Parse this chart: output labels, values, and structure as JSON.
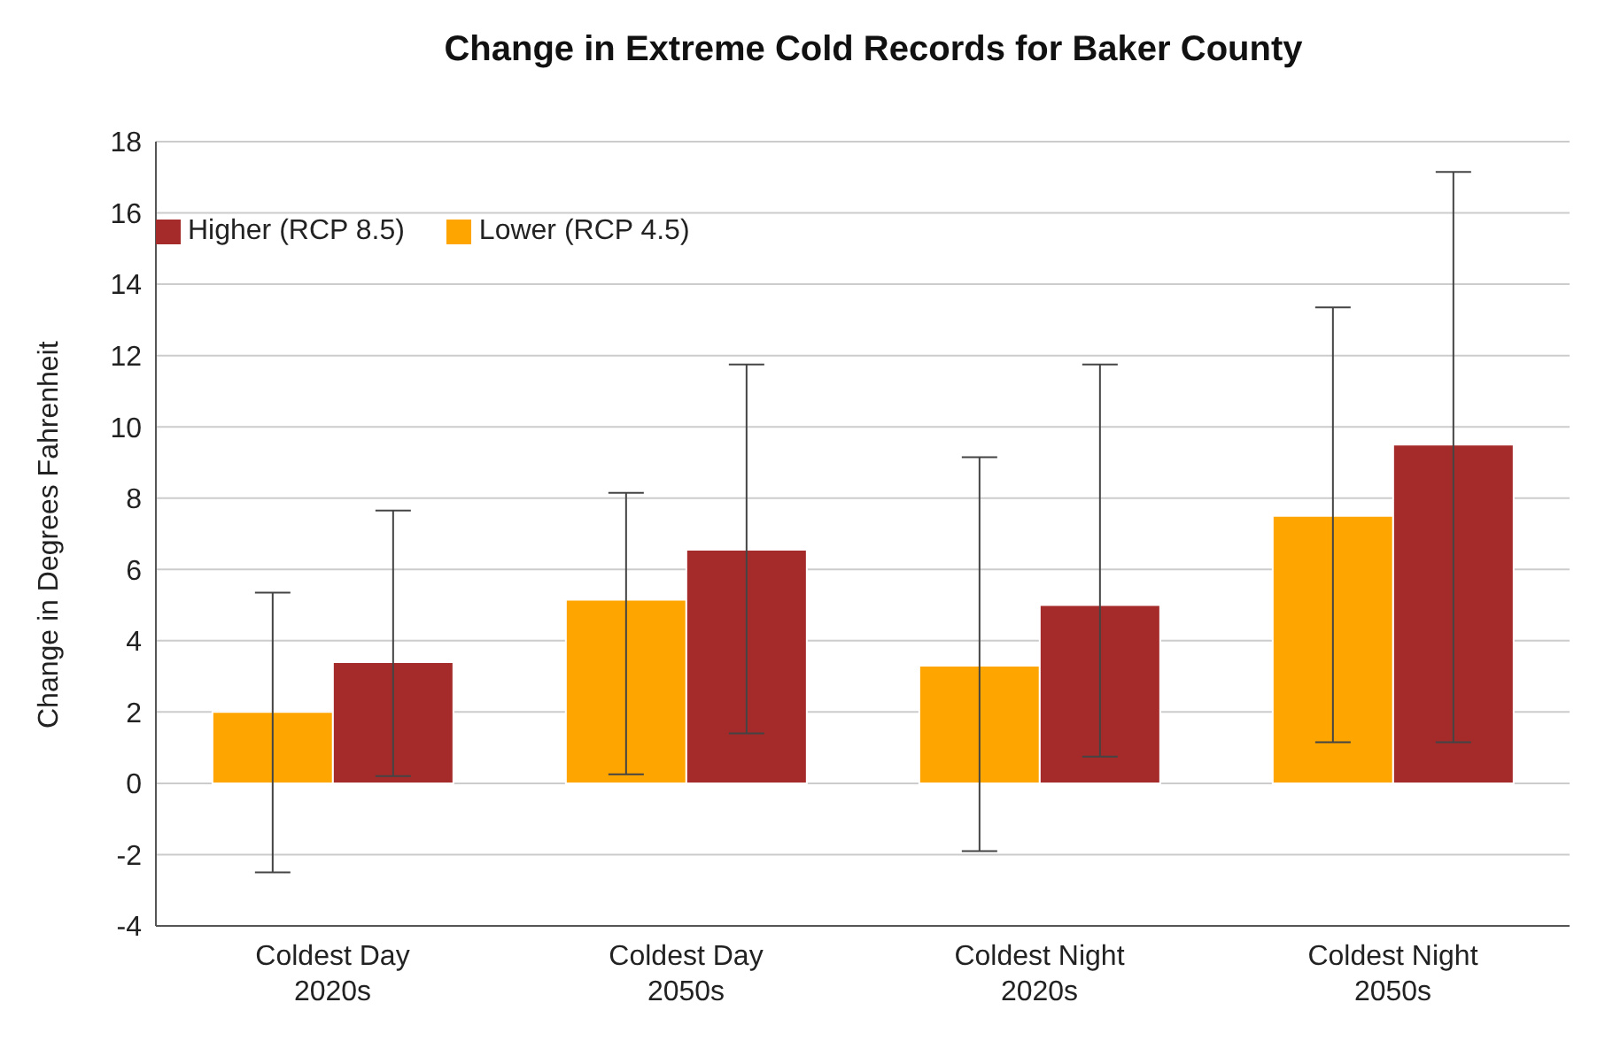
{
  "chart_data": {
    "type": "bar",
    "title": "Change in Extreme Cold Records for Baker County",
    "ylabel": "Change in Degrees Fahrenheit",
    "categories": [
      "Coldest Day\n2020s",
      "Coldest Day\n2050s",
      "Coldest Night\n2020s",
      "Coldest Night\n2050s"
    ],
    "series": [
      {
        "name": "Lower (RCP 4.5)",
        "color": "#ffa500",
        "values": [
          2.0,
          5.15,
          3.3,
          7.5
        ],
        "errors": [
          [
            -2.5,
            5.35
          ],
          [
            0.25,
            8.15
          ],
          [
            -1.9,
            9.15
          ],
          [
            1.15,
            13.35
          ]
        ]
      },
      {
        "name": "Higher (RCP 8.5)",
        "color": "#a52a2a",
        "values": [
          3.4,
          6.55,
          5.0,
          9.5
        ],
        "errors": [
          [
            0.2,
            7.65
          ],
          [
            1.4,
            11.75
          ],
          [
            0.75,
            11.75
          ],
          [
            1.15,
            17.15
          ]
        ]
      }
    ],
    "ylim": [
      -4,
      18
    ],
    "yticks": [
      -4,
      -2,
      0,
      2,
      4,
      6,
      8,
      10,
      12,
      14,
      16,
      18
    ],
    "grid": "y",
    "legend": "top left"
  }
}
